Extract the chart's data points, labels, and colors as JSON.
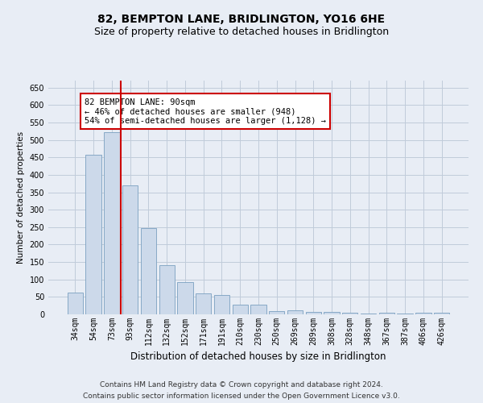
{
  "title": "82, BEMPTON LANE, BRIDLINGTON, YO16 6HE",
  "subtitle": "Size of property relative to detached houses in Bridlington",
  "xlabel": "Distribution of detached houses by size in Bridlington",
  "ylabel": "Number of detached properties",
  "categories": [
    "34sqm",
    "54sqm",
    "73sqm",
    "93sqm",
    "112sqm",
    "132sqm",
    "152sqm",
    "171sqm",
    "191sqm",
    "210sqm",
    "230sqm",
    "250sqm",
    "269sqm",
    "289sqm",
    "308sqm",
    "328sqm",
    "348sqm",
    "367sqm",
    "387sqm",
    "406sqm",
    "426sqm"
  ],
  "values": [
    62,
    457,
    522,
    370,
    248,
    140,
    92,
    60,
    55,
    27,
    27,
    10,
    12,
    7,
    6,
    4,
    2,
    5,
    2,
    5,
    5
  ],
  "bar_color": "#ccd9ea",
  "bar_edge_color": "#7aa0c0",
  "vline_color": "#cc0000",
  "annotation_text": "82 BEMPTON LANE: 90sqm\n← 46% of detached houses are smaller (948)\n54% of semi-detached houses are larger (1,128) →",
  "annotation_box_color": "#ffffff",
  "annotation_box_edge": "#cc0000",
  "ylim": [
    0,
    670
  ],
  "yticks": [
    0,
    50,
    100,
    150,
    200,
    250,
    300,
    350,
    400,
    450,
    500,
    550,
    600,
    650
  ],
  "grid_color": "#c0cbda",
  "background_color": "#e8edf5",
  "footer_line1": "Contains HM Land Registry data © Crown copyright and database right 2024.",
  "footer_line2": "Contains public sector information licensed under the Open Government Licence v3.0.",
  "title_fontsize": 10,
  "subtitle_fontsize": 9,
  "xlabel_fontsize": 8.5,
  "ylabel_fontsize": 7.5,
  "tick_fontsize": 7,
  "annotation_fontsize": 7.5,
  "footer_fontsize": 6.5
}
